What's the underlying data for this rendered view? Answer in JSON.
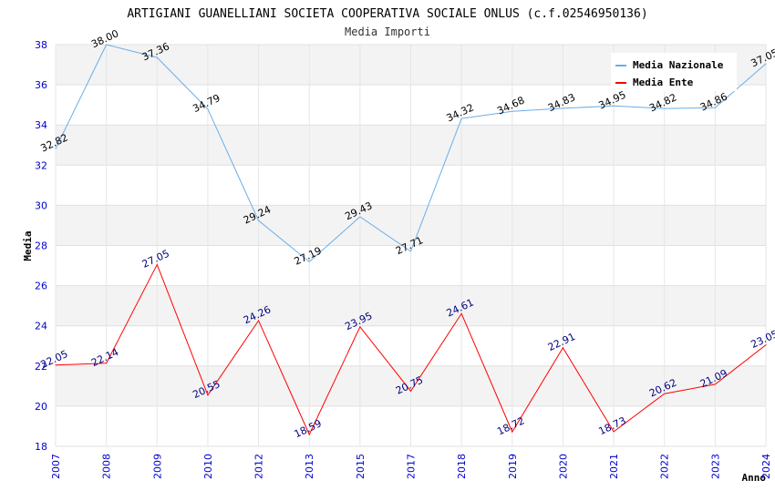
{
  "chart_data": {
    "type": "line",
    "title": "ARTIGIANI GUANELLIANI SOCIETA COOPERATIVA SOCIALE ONLUS (c.f.02546950136)",
    "subtitle": "Media Importi",
    "xlabel": "Anno",
    "ylabel": "Media",
    "ylim": [
      18,
      38
    ],
    "yticks": [
      18,
      20,
      22,
      24,
      26,
      28,
      30,
      32,
      34,
      36,
      38
    ],
    "categories": [
      "2007",
      "2008",
      "2009",
      "2010",
      "2012",
      "2013",
      "2015",
      "2017",
      "2018",
      "2019",
      "2020",
      "2021",
      "2022",
      "2023",
      "2024"
    ],
    "series": [
      {
        "name": "Media Nazionale",
        "color": "#6aaee8",
        "values": [
          32.82,
          38.0,
          37.36,
          34.79,
          29.24,
          27.19,
          29.43,
          27.71,
          34.32,
          34.68,
          34.83,
          34.95,
          34.82,
          34.86,
          37.05
        ],
        "labels": [
          "32.82",
          "38.00",
          "37.36",
          "34.79",
          "29.24",
          "27.19",
          "29.43",
          "27.71",
          "34.32",
          "34.68",
          "34.83",
          "34.95",
          "34.82",
          "34.86",
          "37.05"
        ]
      },
      {
        "name": "Media Ente",
        "color": "#ff0000",
        "values": [
          22.05,
          22.14,
          27.05,
          20.55,
          24.26,
          18.59,
          23.95,
          20.75,
          24.61,
          18.72,
          22.91,
          18.73,
          20.62,
          21.09,
          23.05
        ],
        "labels": [
          "22.05",
          "22.14",
          "27.05",
          "20.55",
          "24.26",
          "18.59",
          "23.95",
          "20.75",
          "24.61",
          "18.72",
          "22.91",
          "18.73",
          "20.62",
          "21.09",
          "23.05"
        ]
      }
    ],
    "legend_position": "top-right",
    "grid": true
  }
}
